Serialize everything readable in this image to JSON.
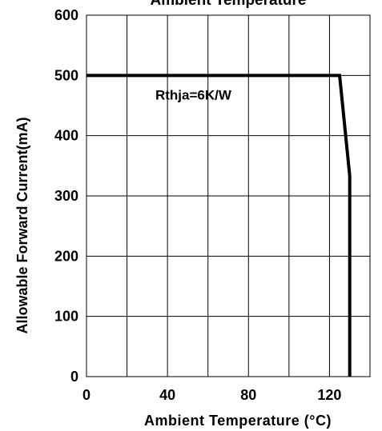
{
  "chart_data": {
    "type": "line",
    "title": "Ambient Temperature",
    "xlabel": "Ambient Temperature (°C)",
    "ylabel": "Allowable Forward Current(mA)",
    "xlim": [
      0,
      140
    ],
    "ylim": [
      0,
      600
    ],
    "x_ticks": [
      0,
      40,
      80,
      120
    ],
    "x_tick_labels": [
      "0",
      "40",
      "80",
      "120"
    ],
    "x_grid": [
      0,
      20,
      40,
      60,
      80,
      100,
      120,
      140
    ],
    "y_ticks": [
      0,
      100,
      200,
      300,
      400,
      500,
      600
    ],
    "y_tick_labels": [
      "0",
      "100",
      "200",
      "300",
      "400",
      "500",
      "600"
    ],
    "grid": true,
    "series": [
      {
        "x": [
          0,
          125,
          130,
          130
        ],
        "y": [
          500,
          500,
          333,
          0
        ]
      }
    ],
    "annotations": [
      {
        "text": "Rthja=6K/W",
        "x": 34,
        "y": 460
      }
    ],
    "colors": {
      "line": "#000000",
      "grid": "#000000",
      "background": "#ffffff"
    }
  }
}
